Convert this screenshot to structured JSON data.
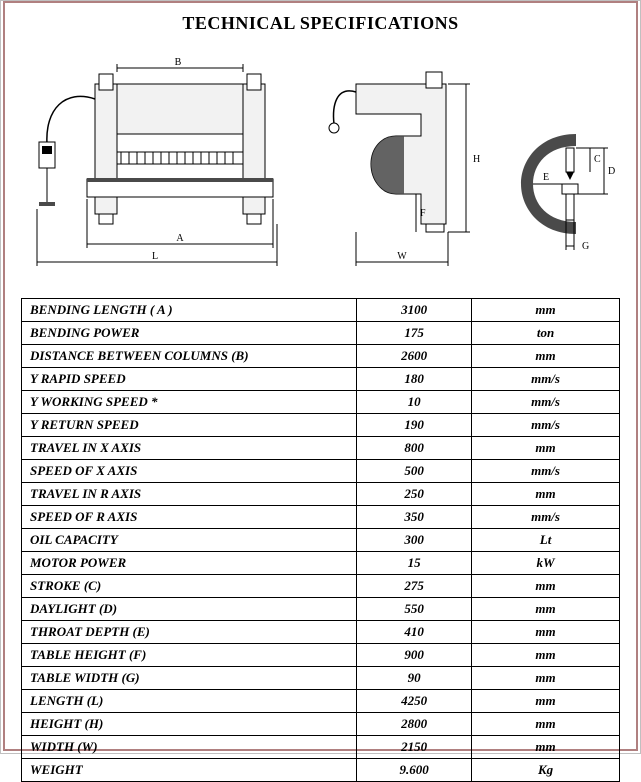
{
  "title": "TECHNICAL SPECIFICATIONS",
  "diagram_labels": {
    "front_B": "B",
    "front_A": "A",
    "front_L": "L",
    "side_W": "W",
    "side_H": "H",
    "side_F": "F",
    "detail_C": "C",
    "detail_D": "D",
    "detail_E": "E",
    "detail_G": "G"
  },
  "table": {
    "columns": [
      "param",
      "value",
      "unit"
    ],
    "rows": [
      {
        "param": "BENDING LENGTH  ( A )",
        "value": "3100",
        "unit": "mm"
      },
      {
        "param": "BENDING POWER",
        "value": "175",
        "unit": "ton"
      },
      {
        "param": "DISTANCE BETWEEN COLUMNS (B)",
        "value": "2600",
        "unit": "mm"
      },
      {
        "param": "Y RAPID SPEED",
        "value": "180",
        "unit": "mm/s"
      },
      {
        "param": "Y WORKING SPEED *",
        "value": "10",
        "unit": "mm/s"
      },
      {
        "param": "Y RETURN SPEED",
        "value": "190",
        "unit": "mm/s"
      },
      {
        "param": "TRAVEL IN X AXIS",
        "value": "800",
        "unit": "mm"
      },
      {
        "param": "SPEED OF X AXIS",
        "value": "500",
        "unit": "mm/s"
      },
      {
        "param": "TRAVEL IN R AXIS",
        "value": "250",
        "unit": "mm"
      },
      {
        "param": "SPEED OF R AXIS",
        "value": "350",
        "unit": "mm/s"
      },
      {
        "param": "OIL CAPACITY",
        "value": "300",
        "unit": "Lt"
      },
      {
        "param": "MOTOR POWER",
        "value": "15",
        "unit": "kW"
      },
      {
        "param": "STROKE (C)",
        "value": "275",
        "unit": "mm"
      },
      {
        "param": "DAYLIGHT (D)",
        "value": "550",
        "unit": "mm"
      },
      {
        "param": "THROAT DEPTH (E)",
        "value": "410",
        "unit": "mm"
      },
      {
        "param": "TABLE HEIGHT (F)",
        "value": "900",
        "unit": "mm"
      },
      {
        "param": "TABLE WIDTH (G)",
        "value": "90",
        "unit": "mm"
      },
      {
        "param": "LENGTH (L)",
        "value": "4250",
        "unit": "mm"
      },
      {
        "param": "HEIGHT (H)",
        "value": "2800",
        "unit": "mm"
      },
      {
        "param": "WIDTH (W)",
        "value": "2150",
        "unit": "mm"
      },
      {
        "param": "WEIGHT",
        "value": "9.600",
        "unit": "Kg"
      }
    ]
  },
  "style": {
    "border_color": "#b08080",
    "text_color": "#000000",
    "background": "#ffffff",
    "table_border": "#000000",
    "table_font_size": 13,
    "title_font_size": 18
  }
}
